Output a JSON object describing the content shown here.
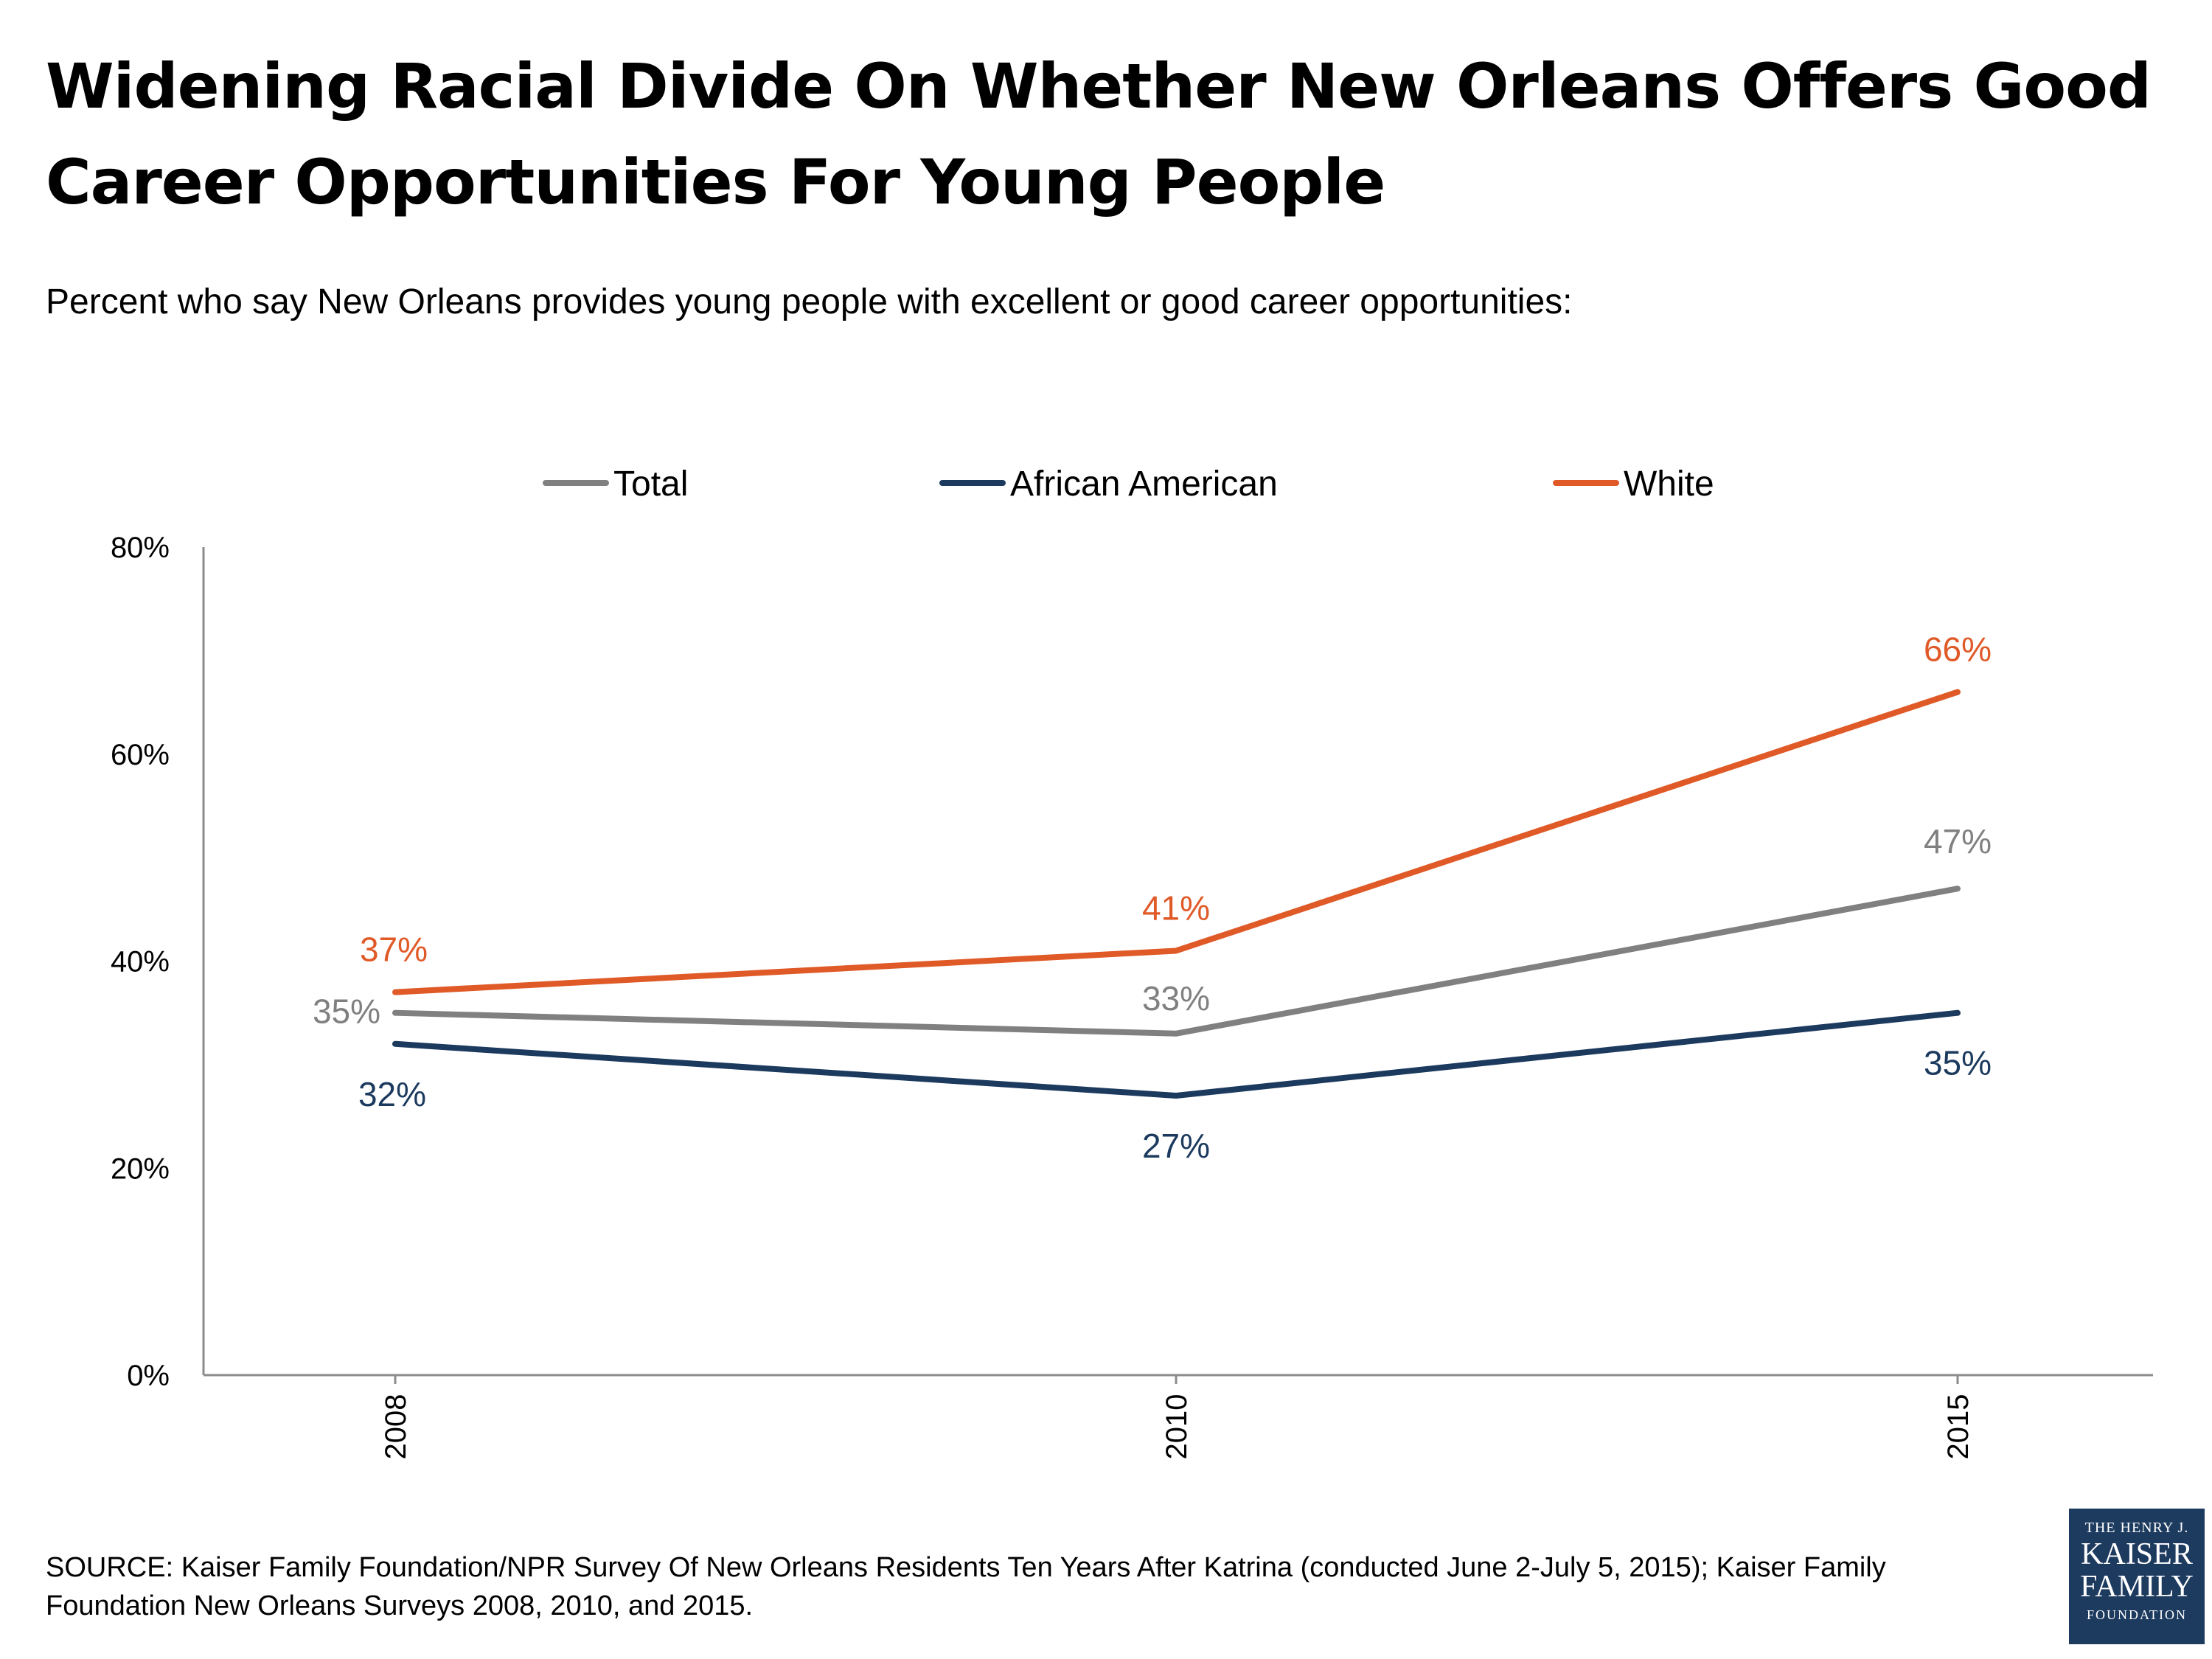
{
  "title": "Widening Racial Divide On Whether New Orleans Offers Good Career Opportunities For Young People",
  "subtitle": "Percent who say New Orleans provides young people with excellent or good career opportunities:",
  "source": "SOURCE: Kaiser Family Foundation/NPR Survey Of New Orleans Residents Ten Years After Katrina (conducted June 2-July 5, 2015); Kaiser Family Foundation New Orleans Surveys 2008, 2010, and 2015.",
  "logo": {
    "line1": "THE HENRY J.",
    "line2": "KAISER",
    "line3": "FAMILY",
    "line4": "FOUNDATION"
  },
  "chart_data": {
    "type": "line",
    "title": "Widening Racial Divide On Whether New Orleans Offers Good Career Opportunities For Young People",
    "subtitle": "Percent who say New Orleans provides young people with excellent or good career opportunities:",
    "x": [
      "2008",
      "2010",
      "2015"
    ],
    "ylim": [
      0,
      80
    ],
    "yticks": [
      0,
      20,
      40,
      60,
      80
    ],
    "ytick_labels": [
      "0%",
      "20%",
      "40%",
      "60%",
      "80%"
    ],
    "grid": false,
    "legend_position": "top",
    "series": [
      {
        "name": "Total",
        "color": "#808080",
        "values": [
          35,
          33,
          47
        ],
        "labels": [
          "35%",
          "33%",
          "47%"
        ]
      },
      {
        "name": "African American",
        "color": "#1c3a5e",
        "values": [
          32,
          27,
          35
        ],
        "labels": [
          "32%",
          "27%",
          "35%"
        ]
      },
      {
        "name": "White",
        "color": "#e05a28",
        "values": [
          37,
          41,
          66
        ],
        "labels": [
          "37%",
          "41%",
          "66%"
        ]
      }
    ]
  }
}
